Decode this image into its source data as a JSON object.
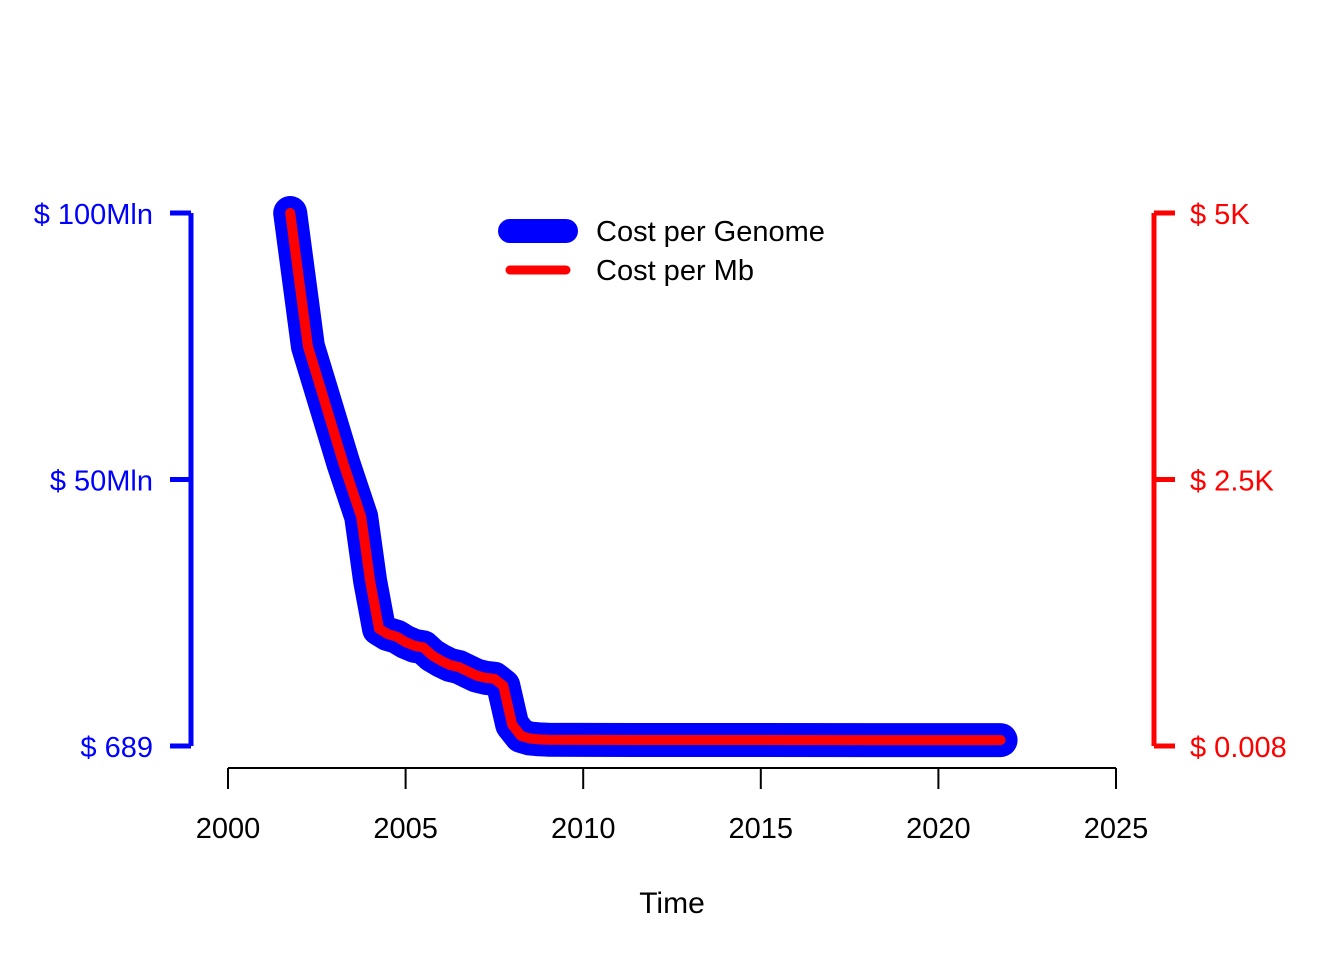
{
  "chart_data": {
    "type": "line",
    "xlabel": "Time",
    "x_ticks": [
      "2000",
      "2005",
      "2010",
      "2015",
      "2020",
      "2025"
    ],
    "xlim": [
      2000,
      2025
    ],
    "left_axis": {
      "color": "#0000ff",
      "ticks": [
        {
          "value": 689,
          "label": "$ 689"
        },
        {
          "value": 50000000,
          "label": "$ 50Mln"
        },
        {
          "value": 100000000,
          "label": "$ 100Mln"
        }
      ],
      "ylim": [
        689,
        100000000
      ]
    },
    "right_axis": {
      "color": "#ff0000",
      "ticks": [
        {
          "value": 0.008,
          "label": "$ 0.008"
        },
        {
          "value": 2500,
          "label": "$ 2.5K"
        },
        {
          "value": 5000,
          "label": "$ 5K"
        }
      ],
      "ylim": [
        0.008,
        5000
      ]
    },
    "legend_position": "top-center",
    "series": [
      {
        "name": "Cost per Genome",
        "axis": "left",
        "color": "#0000ff",
        "x": [
          2001.75,
          2002.25,
          2002.75,
          2003.25,
          2003.75,
          2004.0,
          2004.25,
          2004.5,
          2004.75,
          2005.0,
          2005.25,
          2005.5,
          2005.75,
          2006.0,
          2006.25,
          2006.5,
          2006.75,
          2007.0,
          2007.25,
          2007.5,
          2007.75,
          2008.0,
          2008.25,
          2008.5,
          2008.75,
          2009.0,
          2010.0,
          2012.0,
          2015.0,
          2018.0,
          2020.0,
          2021.75
        ],
        "y": [
          100000000,
          75000000,
          64000000,
          53000000,
          43000000,
          31000000,
          22000000,
          21000000,
          20500000,
          19500000,
          18800000,
          18500000,
          17000000,
          16000000,
          15200000,
          14800000,
          14000000,
          13200000,
          12800000,
          12600000,
          11300000,
          4000000,
          1900000,
          1400000,
          1250000,
          1180000,
          1150000,
          1130000,
          1120000,
          1110000,
          1100000,
          1100000
        ]
      },
      {
        "name": "Cost per Mb",
        "axis": "right",
        "color": "#ff0000",
        "x": [
          2001.75,
          2002.25,
          2002.75,
          2003.25,
          2003.75,
          2004.0,
          2004.25,
          2004.5,
          2004.75,
          2005.0,
          2005.25,
          2005.5,
          2005.75,
          2006.0,
          2006.25,
          2006.5,
          2006.75,
          2007.0,
          2007.25,
          2007.5,
          2007.75,
          2008.0,
          2008.25,
          2008.5,
          2008.75,
          2009.0,
          2010.0,
          2012.0,
          2015.0,
          2018.0,
          2020.0,
          2021.75
        ],
        "y": [
          5000,
          3750,
          3200,
          2650,
          2150,
          1550,
          1100,
          1050,
          1025,
          975,
          940,
          925,
          850,
          800,
          760,
          740,
          700,
          660,
          640,
          630,
          565,
          200,
          95,
          70,
          62,
          59,
          57,
          56,
          56,
          55,
          55,
          55
        ]
      }
    ]
  }
}
